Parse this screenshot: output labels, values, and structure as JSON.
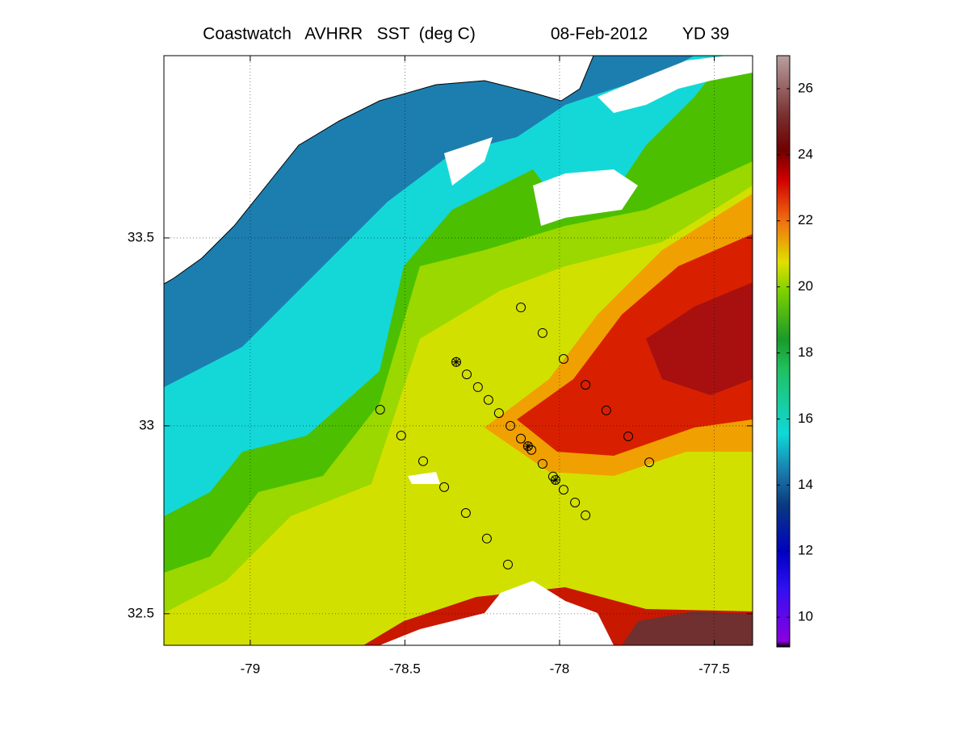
{
  "chart_data": {
    "type": "scatter",
    "title": "Coastwatch   AVHRR   SST  (deg C)",
    "date": "08-Feb-2012",
    "yearday": "YD 39",
    "xlim": [
      -79.279,
      -77.376
    ],
    "xticks": [
      -79,
      -78.5,
      -78,
      -77.5
    ],
    "ylim": [
      32.416,
      33.985
    ],
    "yticks": [
      32.5,
      33,
      33.5
    ],
    "grid": true,
    "series": [
      {
        "marker": "circle",
        "color": "#000000",
        "x": [
          -78.125,
          -78.055,
          -77.987,
          -77.916,
          -77.849,
          -77.778,
          -77.71,
          -78.58,
          -78.512,
          -78.441,
          -78.373,
          -78.303,
          -78.235,
          -78.167,
          -78.3,
          -78.264,
          -78.23,
          -78.196,
          -78.159,
          -78.125,
          -78.091,
          -78.055,
          -78.021,
          -77.987,
          -77.95,
          -77.916
        ],
        "y": [
          33.315,
          33.247,
          33.178,
          33.109,
          33.041,
          32.972,
          32.903,
          33.043,
          32.974,
          32.906,
          32.837,
          32.768,
          32.7,
          32.631,
          33.137,
          33.103,
          33.069,
          33.034,
          33.0,
          32.966,
          32.936,
          32.899,
          32.865,
          32.83,
          32.796,
          32.762
        ]
      },
      {
        "marker": "star",
        "color": "#000000",
        "x": [
          -78.334,
          -78.102,
          -78.013
        ],
        "y": [
          33.17,
          32.946,
          32.856
        ]
      }
    ],
    "colorbar": {
      "lim": [
        9.1,
        27
      ],
      "ticks": [
        10,
        12,
        14,
        16,
        18,
        20,
        22,
        24,
        26
      ]
    }
  }
}
